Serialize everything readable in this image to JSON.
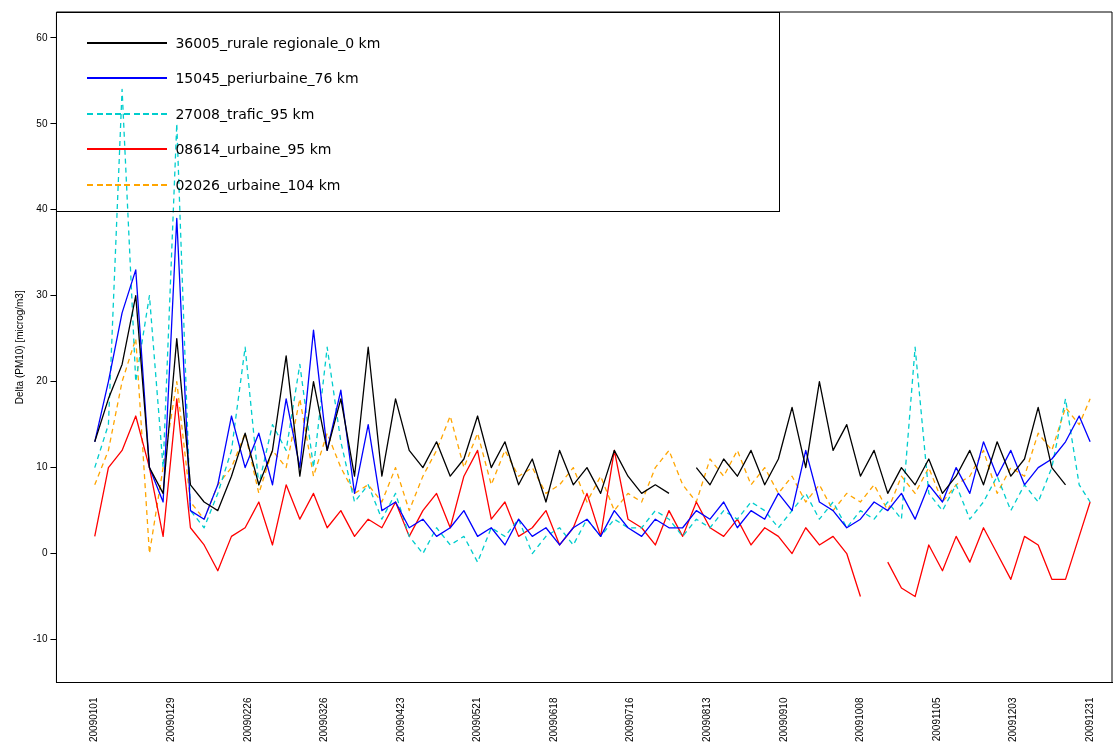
{
  "chart_data": {
    "type": "line",
    "ylabel": "Delta (PM10) [microg/m3]",
    "legend": "top left",
    "grid": false,
    "marker": "none",
    "x": [
      "2009-01-01",
      "2009-01-06",
      "2009-01-11",
      "2009-01-16",
      "2009-01-21",
      "2009-01-26",
      "2009-01-31",
      "2009-02-05",
      "2009-02-10",
      "2009-02-15",
      "2009-02-20",
      "2009-02-25",
      "2009-03-02",
      "2009-03-07",
      "2009-03-12",
      "2009-03-17",
      "2009-03-22",
      "2009-03-27",
      "2009-04-01",
      "2009-04-06",
      "2009-04-11",
      "2009-04-16",
      "2009-04-21",
      "2009-04-26",
      "2009-05-01",
      "2009-05-06",
      "2009-05-11",
      "2009-05-16",
      "2009-05-21",
      "2009-05-26",
      "2009-05-31",
      "2009-06-05",
      "2009-06-10",
      "2009-06-15",
      "2009-06-20",
      "2009-06-25",
      "2009-06-30",
      "2009-07-05",
      "2009-07-10",
      "2009-07-15",
      "2009-07-20",
      "2009-07-25",
      "2009-07-30",
      "2009-08-04",
      "2009-08-09",
      "2009-08-14",
      "2009-08-19",
      "2009-08-24",
      "2009-08-29",
      "2009-09-03",
      "2009-09-08",
      "2009-09-13",
      "2009-09-18",
      "2009-09-23",
      "2009-09-28",
      "2009-10-03",
      "2009-10-08",
      "2009-10-13",
      "2009-10-18",
      "2009-10-23",
      "2009-10-28",
      "2009-11-02",
      "2009-11-07",
      "2009-11-12",
      "2009-11-17",
      "2009-11-22",
      "2009-11-27",
      "2009-12-02",
      "2009-12-07",
      "2009-12-12",
      "2009-12-17",
      "2009-12-22",
      "2009-12-27",
      "2009-12-31"
    ],
    "xlim": [
      "2008-12-18",
      "2010-01-08"
    ],
    "xticks": [
      {
        "value": "2009-01-01",
        "label": "20090101"
      },
      {
        "value": "2009-01-29",
        "label": "20090129"
      },
      {
        "value": "2009-02-26",
        "label": "20090226"
      },
      {
        "value": "2009-03-26",
        "label": "20090326"
      },
      {
        "value": "2009-04-23",
        "label": "20090423"
      },
      {
        "value": "2009-05-21",
        "label": "20090521"
      },
      {
        "value": "2009-06-18",
        "label": "20090618"
      },
      {
        "value": "2009-07-16",
        "label": "20090716"
      },
      {
        "value": "2009-08-13",
        "label": "20090813"
      },
      {
        "value": "2009-09-10",
        "label": "20090910"
      },
      {
        "value": "2009-10-08",
        "label": "20091008"
      },
      {
        "value": "2009-11-05",
        "label": "20091105"
      },
      {
        "value": "2009-12-03",
        "label": "20091203"
      },
      {
        "value": "2009-12-31",
        "label": "20091231"
      }
    ],
    "ylim": [
      -15,
      63
    ],
    "yticks": [
      -10,
      0,
      10,
      20,
      30,
      40,
      50,
      60
    ],
    "series": [
      {
        "name": "36005_rurale regionale_0 km",
        "color": "#000000",
        "line_style": "solid",
        "values": [
          13,
          18,
          22,
          30,
          10,
          7,
          25,
          8,
          6,
          5,
          9,
          14,
          8,
          12,
          23,
          9,
          20,
          12,
          18,
          9,
          24,
          9,
          18,
          12,
          10,
          13,
          9,
          11,
          16,
          10,
          13,
          8,
          11,
          6,
          12,
          8,
          10,
          7,
          12,
          9,
          7,
          8,
          7,
          null,
          10,
          8,
          11,
          9,
          12,
          8,
          11,
          17,
          10,
          20,
          12,
          15,
          9,
          12,
          7,
          10,
          8,
          11,
          7,
          9,
          12,
          8,
          13,
          9,
          11,
          17,
          10,
          8,
          null,
          null
        ]
      },
      {
        "name": "15045_periurbaine_76 km",
        "color": "#0000ff",
        "line_style": "solid",
        "values": [
          13,
          20,
          28,
          33,
          10,
          6,
          39,
          5,
          4,
          8,
          16,
          10,
          14,
          8,
          18,
          10,
          26,
          12,
          19,
          7,
          15,
          5,
          6,
          3,
          4,
          2,
          3,
          5,
          2,
          3,
          1,
          4,
          2,
          3,
          1,
          3,
          4,
          2,
          5,
          3,
          2,
          4,
          3,
          3,
          5,
          4,
          6,
          3,
          5,
          4,
          7,
          5,
          12,
          6,
          5,
          3,
          4,
          6,
          5,
          7,
          4,
          8,
          6,
          10,
          7,
          13,
          9,
          12,
          8,
          10,
          11,
          13,
          16,
          13
        ]
      },
      {
        "name": "27008_trafic_95 km",
        "color": "#00cdcd",
        "line_style": "dashed",
        "values": [
          10,
          15,
          54,
          20,
          30,
          10,
          50,
          5,
          3,
          7,
          12,
          24,
          8,
          15,
          12,
          22,
          10,
          24,
          13,
          6,
          8,
          4,
          7,
          2,
          0,
          3,
          1,
          2,
          -1,
          3,
          2,
          4,
          0,
          2,
          3,
          1,
          4,
          2,
          4,
          3,
          3,
          5,
          4,
          2,
          4,
          3,
          5,
          4,
          6,
          5,
          3,
          5,
          7,
          4,
          6,
          3,
          5,
          4,
          6,
          4,
          24,
          7,
          5,
          8,
          4,
          6,
          9,
          5,
          8,
          6,
          10,
          18,
          8,
          6
        ]
      },
      {
        "name": "08614_urbaine_95 km",
        "color": "#ff0000",
        "line_style": "solid",
        "values": [
          2,
          10,
          12,
          16,
          10,
          2,
          18,
          3,
          1,
          -2,
          2,
          3,
          6,
          1,
          8,
          4,
          7,
          3,
          5,
          2,
          4,
          3,
          6,
          2,
          5,
          7,
          3,
          9,
          12,
          4,
          6,
          2,
          3,
          5,
          1,
          3,
          7,
          2,
          12,
          4,
          3,
          1,
          5,
          2,
          6,
          3,
          2,
          4,
          1,
          3,
          2,
          0,
          3,
          1,
          2,
          0,
          -5,
          null,
          -1,
          -4,
          -5,
          1,
          -2,
          2,
          -1,
          3,
          0,
          -3,
          2,
          1,
          -3,
          -3,
          2,
          6
        ]
      },
      {
        "name": "02026_urbaine_104 km",
        "color": "#ffa500",
        "line_style": "dashed",
        "values": [
          8,
          12,
          20,
          25,
          0,
          10,
          20,
          6,
          4,
          8,
          10,
          14,
          7,
          12,
          10,
          18,
          9,
          14,
          10,
          7,
          8,
          6,
          10,
          5,
          9,
          12,
          16,
          10,
          14,
          8,
          12,
          9,
          10,
          7,
          8,
          10,
          6,
          9,
          5,
          7,
          6,
          10,
          12,
          8,
          6,
          11,
          9,
          12,
          8,
          10,
          7,
          9,
          6,
          8,
          5,
          7,
          6,
          8,
          5,
          9,
          7,
          10,
          6,
          8,
          9,
          12,
          7,
          10,
          9,
          14,
          12,
          17,
          15,
          18
        ]
      }
    ]
  }
}
